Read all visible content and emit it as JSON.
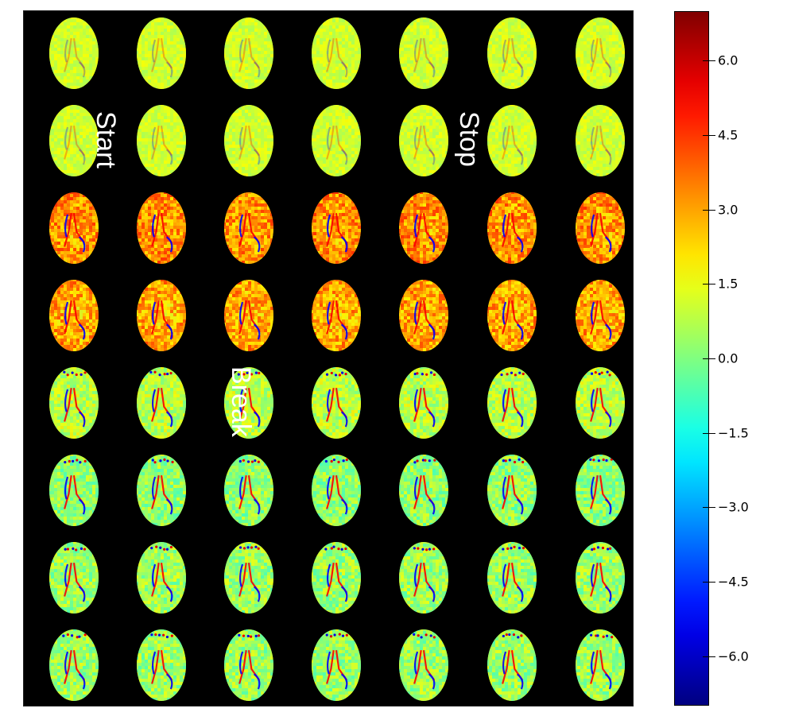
{
  "figure": {
    "grid": {
      "rows": 8,
      "cols": 7
    },
    "background": "#000000"
  },
  "annotations": [
    {
      "id": "start",
      "text": "Start"
    },
    {
      "id": "stop",
      "text": "Stop"
    },
    {
      "id": "break",
      "text": "Break"
    }
  ],
  "colorbar": {
    "colormap": "jet",
    "range": [
      -7.0,
      7.0
    ],
    "ticks": [
      6.0,
      4.5,
      3.0,
      1.5,
      0.0,
      -1.5,
      -3.0,
      -4.5,
      -6.0
    ],
    "tick_labels": [
      "6.0",
      "4.5",
      "3.0",
      "1.5",
      "0.0",
      "−1.5",
      "−3.0",
      "−4.5",
      "−6.0"
    ]
  }
}
